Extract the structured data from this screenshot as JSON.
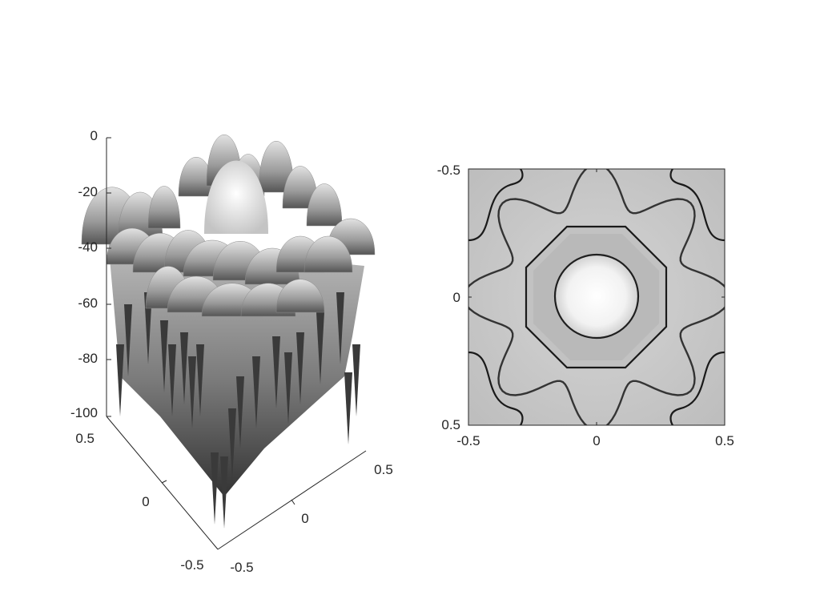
{
  "chart_data": [
    {
      "type": "surface",
      "title": "",
      "xlabel": "",
      "ylabel": "",
      "zlabel": "",
      "colormap": "gray",
      "xlim": [
        -0.5,
        0.5
      ],
      "ylim": [
        -0.5,
        0.5
      ],
      "zlim": [
        -100,
        0
      ],
      "x_ticks": [
        "-0.5",
        "0",
        "0.5"
      ],
      "y_ticks": [
        "-0.5",
        "0",
        "0.5"
      ],
      "z_ticks": [
        "0",
        "-20",
        "-40",
        "-60",
        "-80",
        "-100"
      ],
      "grid": false
    },
    {
      "type": "heatmap",
      "title": "",
      "xlabel": "",
      "ylabel": "",
      "colormap": "gray",
      "xlim": [
        -0.5,
        0.5
      ],
      "ylim": [
        -0.5,
        0.5
      ],
      "x_ticks": [
        "-0.5",
        "0",
        "0.5"
      ],
      "y_ticks": [
        "-0.5",
        "0",
        "0.5"
      ],
      "grid": false
    }
  ],
  "colors": {
    "background": "#ffffff",
    "axis": "#262626"
  }
}
